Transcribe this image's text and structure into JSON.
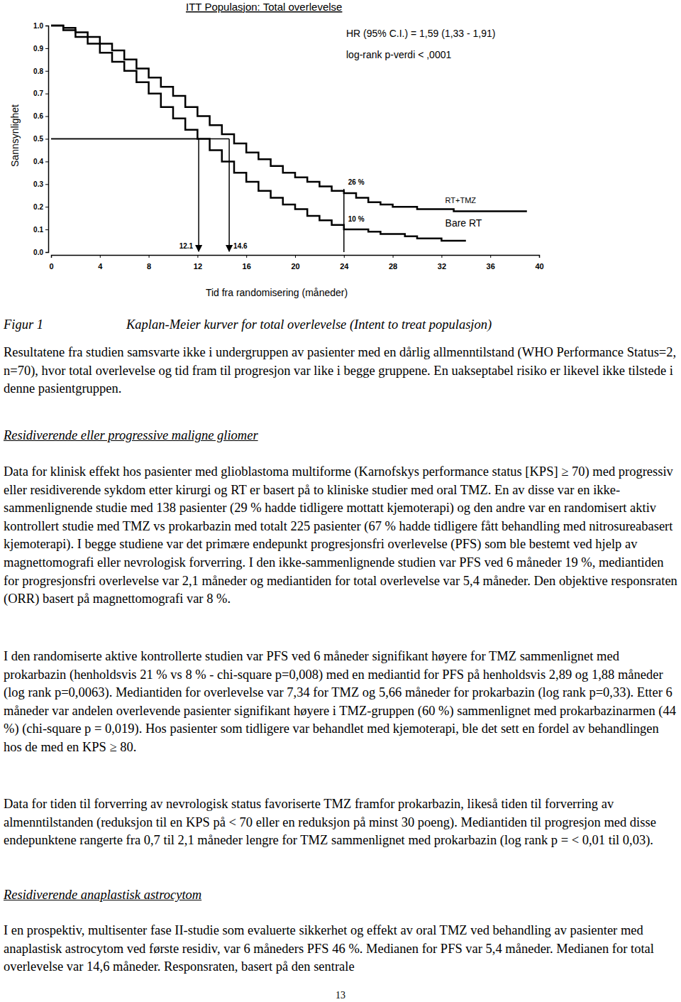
{
  "chart_data": {
    "type": "line",
    "title": "ITT Populasjon: Total overlevelse",
    "x_label": "Tid fra randomisering (måneder)",
    "y_label": "Sannsynlighet",
    "xlim": [
      0,
      40
    ],
    "xticks": [
      0,
      4,
      8,
      12,
      16,
      20,
      24,
      28,
      32,
      36,
      40
    ],
    "ylim": [
      0,
      1
    ],
    "yticks": [
      {
        "value": 0,
        "label": "0.0"
      },
      0.1,
      0.2,
      0.3,
      0.4,
      0.5,
      0.6,
      0.7,
      0.8,
      0.9,
      {
        "value": 1,
        "label": "1.0"
      }
    ],
    "grid": false,
    "stats": [
      "HR (95% C.I.) = 1,59 (1,33 - 1,91)",
      "log-rank p-verdi < ,0001"
    ],
    "series": [
      {
        "name": "RT+TMZ",
        "color": "#000000",
        "line_style": "solid",
        "x": [
          0,
          1,
          2,
          3,
          4,
          5,
          6,
          7,
          8,
          9,
          10,
          11,
          12,
          13,
          14,
          15,
          16,
          17,
          18,
          19,
          20,
          21,
          22,
          23,
          24,
          25,
          26,
          27,
          28,
          29,
          30,
          31,
          32,
          33,
          34,
          35,
          36,
          37,
          38,
          39
        ],
        "values": [
          1.0,
          0.99,
          0.97,
          0.95,
          0.92,
          0.89,
          0.85,
          0.81,
          0.77,
          0.73,
          0.69,
          0.64,
          0.6,
          0.56,
          0.52,
          0.48,
          0.44,
          0.41,
          0.38,
          0.35,
          0.33,
          0.31,
          0.29,
          0.27,
          0.26,
          0.24,
          0.22,
          0.21,
          0.2,
          0.2,
          0.19,
          0.19,
          0.19,
          0.18,
          0.18,
          0.18,
          0.18,
          0.18,
          0.18,
          0.18
        ]
      },
      {
        "name": "Bare RT",
        "color": "#000000",
        "line_style": "solid",
        "x": [
          0,
          1,
          2,
          3,
          4,
          5,
          6,
          7,
          8,
          9,
          10,
          11,
          12,
          13,
          14,
          15,
          16,
          17,
          18,
          19,
          20,
          21,
          22,
          23,
          24,
          25,
          26,
          27,
          28,
          29,
          30,
          31,
          32,
          33,
          34
        ],
        "values": [
          1.0,
          0.98,
          0.95,
          0.92,
          0.88,
          0.84,
          0.8,
          0.75,
          0.7,
          0.64,
          0.59,
          0.54,
          0.5,
          0.45,
          0.4,
          0.35,
          0.31,
          0.27,
          0.24,
          0.21,
          0.19,
          0.16,
          0.14,
          0.12,
          0.1,
          0.1,
          0.09,
          0.08,
          0.08,
          0.07,
          0.06,
          0.06,
          0.05,
          0.05,
          0.05
        ]
      }
    ],
    "medians": [
      {
        "x": 12.1,
        "y": 0.5,
        "label": "12.1"
      },
      {
        "x": 14.6,
        "y": 0.5,
        "label": "14.6"
      }
    ],
    "landmark": {
      "x": 24,
      "values": [
        0.26,
        0.1
      ],
      "labels": [
        "26 %",
        "10 %"
      ]
    }
  },
  "document": {
    "caption": {
      "label": "Figur 1",
      "text": "Kaplan-Meier kurver for total overlevelse (Intent to treat populasjon)"
    },
    "blocks": [
      {
        "paragraph": "Resultatene fra studien samsvarte ikke i undergruppen av pasienter med en dårlig allmenntilstand (WHO Performance Status=2, n=70), hvor total overlevelse og tid fram til progresjon var like i begge gruppene. En uakseptabel risiko er likevel ikke tilstede i denne pasientgruppen."
      },
      {
        "heading": "Residiverende eller progressive maligne gliomer"
      },
      {
        "paragraph": "Data for klinisk effekt hos pasienter med glioblastoma multiforme (Karnofskys performance status [KPS] ≥ 70) med progressiv eller residiverende sykdom etter kirurgi og RT er basert på to kliniske studier med oral TMZ. En av disse var en ikke-sammenlignende studie med 138 pasienter (29 % hadde tidligere mottatt kjemoterapi) og den andre var en randomisert aktiv kontrollert studie med TMZ vs prokarbazin med totalt 225 pasienter (67 % hadde tidligere fått behandling med nitrosureabasert kjemoterapi). I begge studiene var det primære endepunkt progresjonsfri overlevelse (PFS) som ble bestemt ved hjelp av magnettomografi eller nevrologisk forverring. I den ikke-sammenlignende studien var PFS ved 6 måneder 19 %, mediantiden for progresjonsfri overlevelse var 2,1 måneder og mediantiden for total overlevelse var 5,4 måneder. Den objektive responsraten (ORR) basert på magnettomografi var 8 %."
      },
      {
        "paragraph": "I den randomiserte aktive kontrollerte studien var PFS ved 6 måneder signifikant høyere for TMZ sammenlignet med prokarbazin (henholdsvis 21 % vs 8 % - chi-square p=0,008) med en mediantid for PFS på henholdsvis 2,89 og 1,88 måneder (log rank p=0,0063). Mediantiden for overlevelse var 7,34 for TMZ og 5,66 måneder for prokarbazin (log rank p=0,33). Etter 6 måneder var andelen overlevende pasienter signifikant høyere i TMZ-gruppen (60 %) sammenlignet med prokarbazinarmen (44 %) (chi-square p = 0,019). Hos pasienter som tidligere var behandlet med kjemoterapi, ble det sett en fordel av behandlingen hos de med en KPS ≥ 80."
      },
      {
        "paragraph": "Data for tiden til forverring av nevrologisk status favoriserte TMZ framfor prokarbazin, likeså tiden til forverring av almenntilstanden (reduksjon til en KPS på < 70 eller en reduksjon på minst 30 poeng). Mediantiden til progresjon med disse endepunktene rangerte fra 0,7 til 2,1 måneder lengre for TMZ sammenlignet med prokarbazin (log rank p = < 0,01 til 0,03)."
      },
      {
        "heading": "Residiverende anaplastisk astrocytom"
      },
      {
        "paragraph": "I en prospektiv, multisenter fase II-studie som evaluerte sikkerhet og effekt av oral TMZ ved behandling av pasienter med anaplastisk astrocytom ved første residiv, var 6 måneders PFS 46 %. Medianen for PFS var 5,4 måneder. Medianen for total overlevelse var 14,6 måneder. Responsraten, basert på den sentrale"
      }
    ],
    "page_number": "13"
  }
}
